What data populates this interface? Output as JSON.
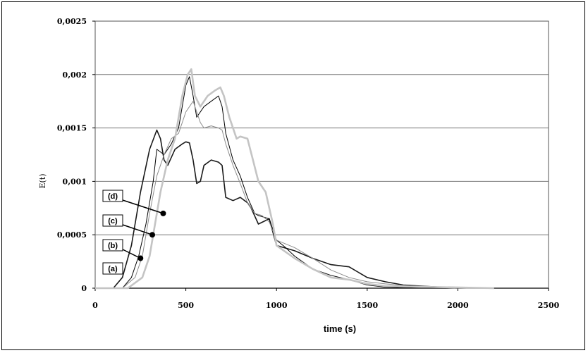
{
  "chart_data": {
    "type": "line",
    "title": "",
    "xlabel": "time (s)",
    "ylabel": "E(t)",
    "xlim": [
      0,
      2500
    ],
    "ylim": [
      0,
      0.0025
    ],
    "x_ticks": [
      0,
      500,
      1000,
      1500,
      2000,
      2500
    ],
    "x_tick_labels": [
      "0",
      "500",
      "1000",
      "1500",
      "2000",
      "2500"
    ],
    "y_ticks": [
      0,
      0.0005,
      0.001,
      0.0015,
      0.002,
      0.0025
    ],
    "y_tick_labels": [
      "0",
      "0,0005",
      "0,001",
      "0,0015",
      "0,002",
      "0,0025"
    ],
    "grid": "horizontal",
    "legend": "none",
    "series": [
      {
        "color": "#1a1a1a",
        "width": 1.6,
        "points": [
          [
            0,
            0
          ],
          [
            100,
            0
          ],
          [
            150,
            0.0001
          ],
          [
            200,
            0.0004
          ],
          [
            250,
            0.0009
          ],
          [
            300,
            0.0013
          ],
          [
            340,
            0.00148
          ],
          [
            360,
            0.0014
          ],
          [
            380,
            0.0012
          ],
          [
            400,
            0.00115
          ],
          [
            440,
            0.0013
          ],
          [
            480,
            0.00135
          ],
          [
            500,
            0.00137
          ],
          [
            520,
            0.00136
          ],
          [
            540,
            0.0012
          ],
          [
            560,
            0.00098
          ],
          [
            580,
            0.001
          ],
          [
            600,
            0.00115
          ],
          [
            640,
            0.0012
          ],
          [
            680,
            0.00118
          ],
          [
            700,
            0.00115
          ],
          [
            720,
            0.00085
          ],
          [
            760,
            0.00082
          ],
          [
            800,
            0.00085
          ],
          [
            840,
            0.0008
          ],
          [
            860,
            0.00075
          ],
          [
            900,
            0.0006
          ],
          [
            960,
            0.00065
          ],
          [
            1000,
            0.0004
          ],
          [
            1100,
            0.00035
          ],
          [
            1200,
            0.00028
          ],
          [
            1300,
            0.00022
          ],
          [
            1400,
            0.0002
          ],
          [
            1500,
            0.0001
          ],
          [
            1600,
            6e-05
          ],
          [
            1700,
            3e-05
          ],
          [
            1800,
            2e-05
          ],
          [
            2000,
            0
          ]
        ]
      },
      {
        "color": "#000000",
        "width": 1.0,
        "points": [
          [
            0,
            0
          ],
          [
            150,
            0
          ],
          [
            200,
            0.0001
          ],
          [
            240,
            0.0003
          ],
          [
            280,
            0.0006
          ],
          [
            320,
            0.001
          ],
          [
            340,
            0.0013
          ],
          [
            380,
            0.00125
          ],
          [
            420,
            0.00135
          ],
          [
            460,
            0.0015
          ],
          [
            500,
            0.0019
          ],
          [
            520,
            0.00198
          ],
          [
            540,
            0.0018
          ],
          [
            560,
            0.0016
          ],
          [
            600,
            0.0017
          ],
          [
            640,
            0.00175
          ],
          [
            680,
            0.0018
          ],
          [
            700,
            0.0017
          ],
          [
            720,
            0.00145
          ],
          [
            760,
            0.0012
          ],
          [
            800,
            0.00105
          ],
          [
            840,
            0.00085
          ],
          [
            880,
            0.0007
          ],
          [
            900,
            0.00068
          ],
          [
            960,
            0.00065
          ],
          [
            1000,
            0.00045
          ],
          [
            1050,
            0.00038
          ],
          [
            1100,
            0.0003
          ],
          [
            1200,
            0.00018
          ],
          [
            1300,
            0.00012
          ],
          [
            1400,
            8e-05
          ],
          [
            1500,
            3e-05
          ],
          [
            1600,
            1e-05
          ],
          [
            1800,
            0
          ]
        ]
      },
      {
        "color": "#8c8c8c",
        "width": 1.0,
        "points": [
          [
            0,
            0
          ],
          [
            150,
            0
          ],
          [
            220,
            0.0001
          ],
          [
            260,
            0.0003
          ],
          [
            300,
            0.0007
          ],
          [
            340,
            0.00105
          ],
          [
            380,
            0.00125
          ],
          [
            420,
            0.0014
          ],
          [
            460,
            0.00145
          ],
          [
            500,
            0.00165
          ],
          [
            540,
            0.00175
          ],
          [
            580,
            0.00155
          ],
          [
            600,
            0.0015
          ],
          [
            640,
            0.00152
          ],
          [
            680,
            0.0015
          ],
          [
            700,
            0.00148
          ],
          [
            720,
            0.00135
          ],
          [
            760,
            0.00115
          ],
          [
            800,
            0.00098
          ],
          [
            840,
            0.0008
          ],
          [
            880,
            0.0007
          ],
          [
            920,
            0.00068
          ],
          [
            960,
            0.00062
          ],
          [
            1000,
            0.00045
          ],
          [
            1100,
            0.00038
          ],
          [
            1200,
            0.00028
          ],
          [
            1300,
            0.00017
          ],
          [
            1400,
            0.0001
          ],
          [
            1500,
            6e-05
          ],
          [
            1600,
            4e-05
          ],
          [
            1800,
            1e-05
          ],
          [
            2000,
            0
          ]
        ]
      },
      {
        "color": "#c4c4c4",
        "width": 2.6,
        "points": [
          [
            0,
            0
          ],
          [
            180,
            0
          ],
          [
            260,
            0.0001
          ],
          [
            300,
            0.0003
          ],
          [
            330,
            0.0006
          ],
          [
            360,
            0.0009
          ],
          [
            400,
            0.0012
          ],
          [
            440,
            0.0014
          ],
          [
            480,
            0.0018
          ],
          [
            510,
            0.002
          ],
          [
            530,
            0.00205
          ],
          [
            550,
            0.0018
          ],
          [
            580,
            0.0017
          ],
          [
            620,
            0.0018
          ],
          [
            660,
            0.00185
          ],
          [
            690,
            0.00188
          ],
          [
            710,
            0.0018
          ],
          [
            740,
            0.0016
          ],
          [
            780,
            0.0014
          ],
          [
            800,
            0.00142
          ],
          [
            840,
            0.0014
          ],
          [
            870,
            0.0012
          ],
          [
            900,
            0.001
          ],
          [
            940,
            0.0009
          ],
          [
            980,
            0.0006
          ],
          [
            1000,
            0.0004
          ],
          [
            1100,
            0.00028
          ],
          [
            1200,
            0.00018
          ],
          [
            1300,
            0.0001
          ],
          [
            1400,
            8e-05
          ],
          [
            1500,
            4e-05
          ],
          [
            1600,
            2e-05
          ],
          [
            2200,
            0
          ]
        ]
      }
    ],
    "annotations": [
      {
        "label": "(a)",
        "x": 0,
        "y": 0.00015
      },
      {
        "label": "(b)",
        "x": 250,
        "y": 0.00028
      },
      {
        "label": "(c)",
        "x": 315,
        "y": 0.0005
      },
      {
        "label": "(d)",
        "x": 375,
        "y": 0.0007
      }
    ]
  }
}
